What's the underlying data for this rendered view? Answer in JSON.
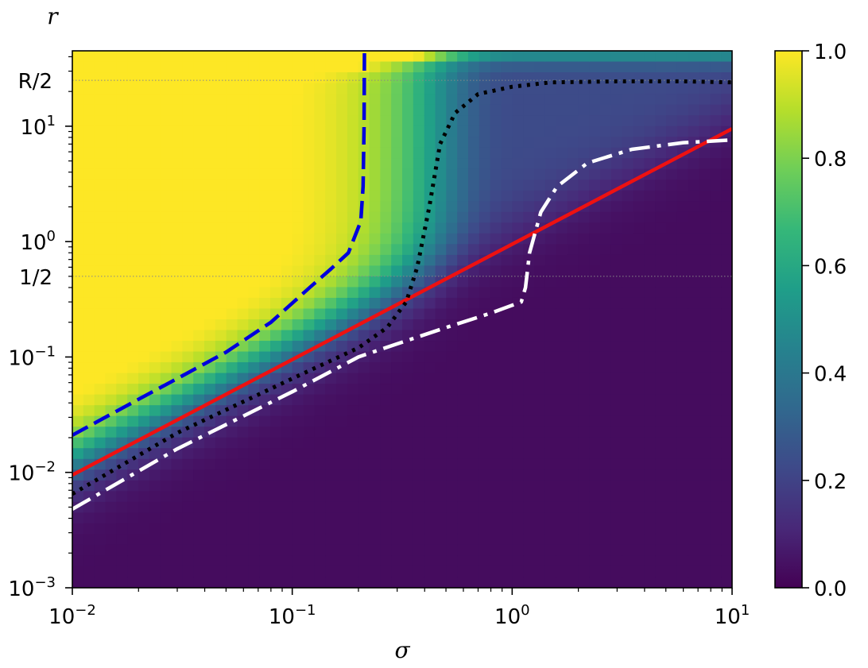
{
  "chart_data": {
    "type": "heatmap",
    "xlabel": "σ",
    "ylabel": "r",
    "x_scale": "log",
    "y_scale": "log",
    "xlim": [
      0.01,
      10
    ],
    "ylim": [
      0.001,
      45
    ],
    "x_ticks": [
      {
        "value": 0.01,
        "label_base": "10",
        "label_exp": "−2"
      },
      {
        "value": 0.1,
        "label_base": "10",
        "label_exp": "−1"
      },
      {
        "value": 1,
        "label_base": "10",
        "label_exp": "0"
      },
      {
        "value": 10,
        "label_base": "10",
        "label_exp": "1"
      }
    ],
    "y_ticks": [
      {
        "value": 0.001,
        "label_base": "10",
        "label_exp": "−3"
      },
      {
        "value": 0.01,
        "label_base": "10",
        "label_exp": "−2"
      },
      {
        "value": 0.1,
        "label_base": "10",
        "label_exp": "−1"
      },
      {
        "value": 1,
        "label_base": "10",
        "label_exp": "0"
      },
      {
        "value": 10,
        "label_base": "10",
        "label_exp": "1"
      }
    ],
    "reference_lines": [
      {
        "value": 0.5,
        "label": "1/2"
      },
      {
        "value": 25,
        "label": "R/2"
      }
    ],
    "colormap": {
      "name": "viridis",
      "range": [
        0.0,
        1.0
      ],
      "ticks": [
        "0.0",
        "0.2",
        "0.4",
        "0.6",
        "0.8",
        "1.0"
      ],
      "stops": [
        "#440154",
        "#482878",
        "#3e4989",
        "#31688e",
        "#26828e",
        "#1f9e89",
        "#35b779",
        "#6ece58",
        "#b5de2b",
        "#fde725"
      ]
    },
    "series": [
      {
        "style": "dashed",
        "color": "#0000dd",
        "points": [
          [
            0.01,
            0.021
          ],
          [
            0.02,
            0.043
          ],
          [
            0.03,
            0.065
          ],
          [
            0.05,
            0.11
          ],
          [
            0.08,
            0.2
          ],
          [
            0.12,
            0.4
          ],
          [
            0.15,
            0.58
          ],
          [
            0.18,
            0.8
          ],
          [
            0.205,
            1.5
          ],
          [
            0.21,
            3
          ],
          [
            0.212,
            10
          ],
          [
            0.213,
            45
          ]
        ]
      },
      {
        "style": "solid",
        "color": "#ee1111",
        "points": [
          [
            0.01,
            0.0095
          ],
          [
            10,
            9.5
          ]
        ]
      },
      {
        "style": "dotted",
        "color": "#000000",
        "points": [
          [
            0.01,
            0.0065
          ],
          [
            0.03,
            0.022
          ],
          [
            0.1,
            0.065
          ],
          [
            0.2,
            0.12
          ],
          [
            0.27,
            0.18
          ],
          [
            0.33,
            0.3
          ],
          [
            0.37,
            0.6
          ],
          [
            0.42,
            2.0
          ],
          [
            0.47,
            7.0
          ],
          [
            0.55,
            13.0
          ],
          [
            0.7,
            19.0
          ],
          [
            1.0,
            22.0
          ],
          [
            1.5,
            24.0
          ],
          [
            3.0,
            24.5
          ],
          [
            6.0,
            24.5
          ],
          [
            10.0,
            24.0
          ]
        ]
      },
      {
        "style": "dashdot",
        "color": "#ffffff",
        "points": [
          [
            0.01,
            0.0048
          ],
          [
            0.03,
            0.016
          ],
          [
            0.1,
            0.05
          ],
          [
            0.2,
            0.1
          ],
          [
            0.3,
            0.13
          ],
          [
            0.5,
            0.18
          ],
          [
            0.8,
            0.24
          ],
          [
            1.1,
            0.3
          ],
          [
            1.15,
            0.4
          ],
          [
            1.2,
            0.8
          ],
          [
            1.35,
            1.8
          ],
          [
            1.6,
            3.0
          ],
          [
            2.2,
            4.8
          ],
          [
            3.5,
            6.3
          ],
          [
            6.0,
            7.2
          ],
          [
            10.0,
            7.6
          ]
        ]
      }
    ]
  }
}
